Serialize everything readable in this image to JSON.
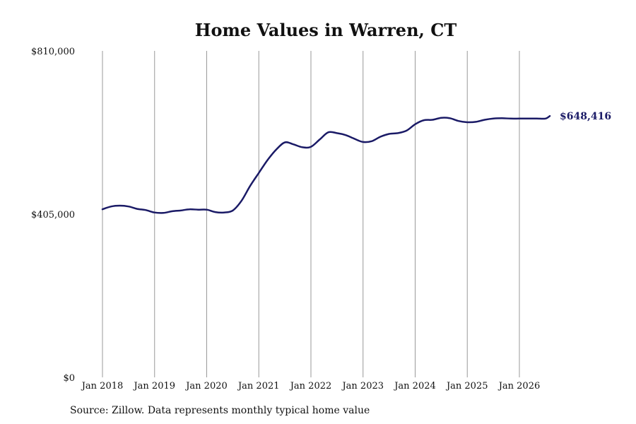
{
  "colors": {
    "line": "#1a1a66",
    "grid": "#999999",
    "text": "#111111"
  },
  "chart_data": {
    "type": "line",
    "title": "Home Values in Warren, CT",
    "xlabel": "",
    "ylabel": "",
    "ylim": [
      0,
      810000
    ],
    "xlim": [
      "2018-01",
      "2026-08"
    ],
    "y_ticks": [
      {
        "value": 0,
        "label": "$0"
      },
      {
        "value": 405000,
        "label": "$405,000"
      },
      {
        "value": 810000,
        "label": "$810,000"
      }
    ],
    "x_ticks": [
      {
        "value": "2018-01",
        "label": "Jan 2018"
      },
      {
        "value": "2019-01",
        "label": "Jan 2019"
      },
      {
        "value": "2020-01",
        "label": "Jan 2020"
      },
      {
        "value": "2021-01",
        "label": "Jan 2021"
      },
      {
        "value": "2022-01",
        "label": "Jan 2022"
      },
      {
        "value": "2023-01",
        "label": "Jan 2023"
      },
      {
        "value": "2024-01",
        "label": "Jan 2024"
      },
      {
        "value": "2025-01",
        "label": "Jan 2025"
      },
      {
        "value": "2026-01",
        "label": "Jan 2026"
      }
    ],
    "vertical_grid": true,
    "horizontal_grid": false,
    "series": [
      {
        "x": [
          "2018-01",
          "2018-03",
          "2018-05",
          "2018-07",
          "2018-09",
          "2018-11",
          "2019-01",
          "2019-03",
          "2019-05",
          "2019-07",
          "2019-09",
          "2019-11",
          "2020-01",
          "2020-03",
          "2020-05",
          "2020-07",
          "2020-09",
          "2020-11",
          "2021-01",
          "2021-03",
          "2021-05",
          "2021-07",
          "2021-09",
          "2021-11",
          "2022-01",
          "2022-03",
          "2022-05",
          "2022-07",
          "2022-09",
          "2022-11",
          "2023-01",
          "2023-03",
          "2023-05",
          "2023-07",
          "2023-09",
          "2023-11",
          "2024-01",
          "2024-03",
          "2024-05",
          "2024-07",
          "2024-09",
          "2024-11",
          "2025-01",
          "2025-03",
          "2025-05",
          "2025-07",
          "2025-09",
          "2025-11",
          "2026-01",
          "2026-03",
          "2026-05",
          "2026-07",
          "2026-08"
        ],
        "y": [
          417000,
          424000,
          426000,
          424000,
          418000,
          415000,
          409000,
          408000,
          412000,
          414000,
          417000,
          416000,
          416000,
          410000,
          409000,
          414000,
          438000,
          475000,
          507000,
          539000,
          565000,
          583000,
          578000,
          571000,
          572000,
          590000,
          608000,
          606000,
          601000,
          592000,
          584000,
          586000,
          597000,
          604000,
          606000,
          612000,
          628000,
          638000,
          639000,
          644000,
          643000,
          636000,
          633000,
          634000,
          639000,
          642000,
          643000,
          642000,
          642000,
          642000,
          642000,
          642000,
          648416
        ]
      }
    ],
    "end_label": "$648,416"
  },
  "footer": {
    "source": "Source: Zillow. Data represents monthly typical home value"
  }
}
